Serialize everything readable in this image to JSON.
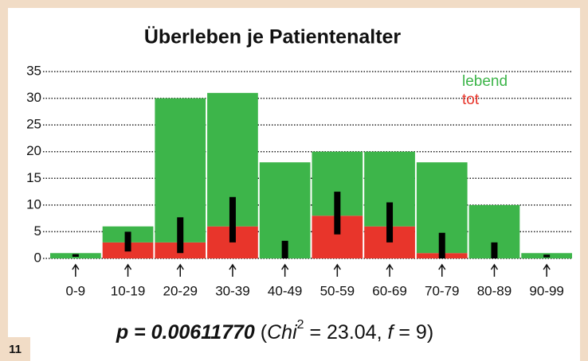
{
  "chart_data": {
    "type": "bar",
    "stacked": true,
    "title": "Überleben je Patientenalter",
    "categories": [
      "0-9",
      "10-19",
      "20-29",
      "30-39",
      "40-49",
      "50-59",
      "60-69",
      "70-79",
      "80-89",
      "90-99"
    ],
    "series": [
      {
        "name": "tot",
        "color": "#e8352b",
        "values": [
          0,
          3,
          3,
          6,
          0,
          8,
          6,
          1,
          0,
          0
        ]
      },
      {
        "name": "lebend",
        "color": "#3db54a",
        "values": [
          1,
          3,
          27,
          25,
          18,
          12,
          14,
          17,
          10,
          1
        ]
      }
    ],
    "error_bars": {
      "color": "#000000",
      "low": [
        0.3,
        1.3,
        1,
        3,
        0,
        4.5,
        3,
        0,
        0,
        0.2
      ],
      "high": [
        0.8,
        5,
        7.7,
        11.5,
        3.3,
        12.5,
        10.5,
        4.8,
        3,
        0.7
      ]
    },
    "ylim": [
      0,
      35
    ],
    "yticks": [
      0,
      5,
      10,
      15,
      20,
      25,
      30,
      35
    ],
    "grid": true,
    "legend": "upper right",
    "annotation": [
      "p = 0.00611770",
      "(",
      "Chi",
      "2",
      " = 23.04, ",
      "f",
      " = 9)"
    ],
    "figure_number": "11"
  }
}
